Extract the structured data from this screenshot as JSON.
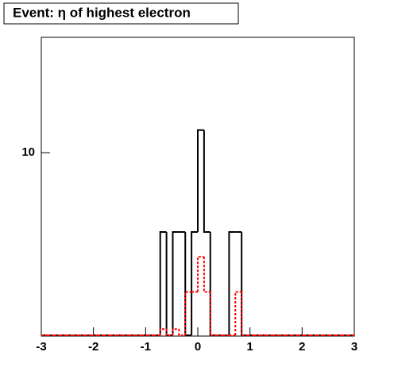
{
  "chart_data": {
    "type": "histogram",
    "title": "Event: η of highest electron",
    "bins": [
      -3,
      -2.88,
      -2.76,
      -2.64,
      -2.52,
      -2.4,
      -2.28,
      -2.16,
      -2.04,
      -1.92,
      -1.8,
      -1.68,
      -1.56,
      -1.44,
      -1.32,
      -1.2,
      -1.08,
      -0.96,
      -0.84,
      -0.72,
      -0.6,
      -0.48,
      -0.36,
      -0.24,
      -0.12,
      0,
      0.12,
      0.24,
      0.36,
      0.48,
      0.6,
      0.72,
      0.84,
      0.96,
      1.08,
      1.2,
      1.32,
      1.44,
      1.56,
      1.68,
      1.8,
      1.92,
      2.04,
      2.16,
      2.28,
      2.4,
      2.52,
      2.64,
      2.76,
      2.88,
      3
    ],
    "series": [
      {
        "color": "#000000",
        "dashed": false,
        "values": [
          0,
          0,
          0,
          0,
          0,
          0,
          0,
          0,
          0,
          0,
          0,
          0,
          0,
          0,
          0,
          0,
          0,
          0,
          0,
          4,
          0,
          4,
          4,
          0,
          4,
          13,
          4,
          0,
          0,
          0,
          4,
          4,
          0,
          0,
          0,
          0,
          0,
          0,
          0,
          0,
          0,
          0,
          0,
          0,
          0,
          0,
          0,
          0,
          0,
          0
        ]
      },
      {
        "color": "#ff0000",
        "dashed": true,
        "values": [
          0,
          0,
          0,
          0,
          0,
          0,
          0,
          0,
          0,
          0,
          0,
          0,
          0,
          0,
          0,
          0,
          0,
          0,
          0,
          1.3,
          0,
          1.3,
          0,
          2,
          2,
          3,
          2,
          0,
          0,
          0,
          0,
          2,
          0,
          0,
          0,
          0,
          0,
          0,
          0,
          0,
          0,
          0,
          0,
          0,
          0,
          0,
          0,
          0,
          0,
          0
        ]
      }
    ],
    "xlim": [
      -3,
      3
    ],
    "xticks": [
      -3,
      -2,
      -1,
      0,
      1,
      2,
      3
    ],
    "ylim": [
      1.2,
      38
    ],
    "yticks": [
      10
    ],
    "log_y": true
  }
}
